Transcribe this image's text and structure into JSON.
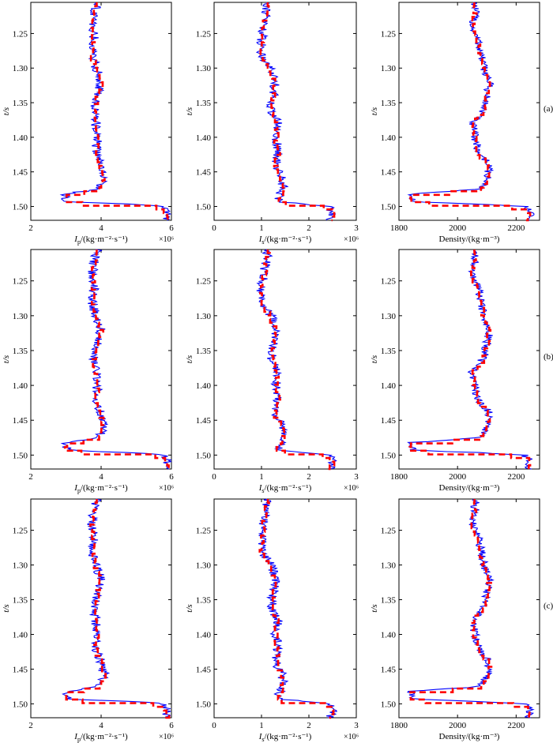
{
  "rows": [
    {
      "tag": "(a)",
      "seed": 11
    },
    {
      "tag": "(b)",
      "seed": 23
    },
    {
      "tag": "(c)",
      "seed": 37
    }
  ],
  "columns": [
    {
      "key": "ip",
      "xlim": [
        2,
        6
      ],
      "xticks": [
        "2",
        "4",
        "6"
      ],
      "xtick_values": [
        2,
        4,
        6
      ],
      "label_main": "I",
      "label_sub": "p",
      "label_rest": "/(kg·m⁻²·s⁻¹)",
      "scale": "×10⁶"
    },
    {
      "key": "is",
      "xlim": [
        0,
        3
      ],
      "xticks": [
        "0",
        "1",
        "2",
        "3"
      ],
      "xtick_values": [
        0,
        1,
        2,
        3
      ],
      "label_main": "I",
      "label_sub": "s",
      "label_rest": "/(kg·m⁻²·s⁻¹)",
      "scale": "×10⁶"
    },
    {
      "key": "rho",
      "xlim": [
        1800,
        2280
      ],
      "xticks": [
        "1800",
        "2000",
        "2200"
      ],
      "xtick_values": [
        1800,
        2000,
        2200
      ],
      "label_main": "Density/(kg·m⁻³)",
      "label_sub": "",
      "label_rest": "",
      "scale": ""
    }
  ],
  "y_axis": {
    "label": "t/s",
    "ylim": [
      1.205,
      1.52
    ],
    "ticks": [
      "1.25",
      "1.30",
      "1.35",
      "1.40",
      "1.45",
      "1.50"
    ],
    "tick_values": [
      1.25,
      1.3,
      1.35,
      1.4,
      1.45,
      1.5
    ]
  },
  "chart_data": {
    "type": "line",
    "note_series": "each panel: true log (blue solid) and inverted log (red dashed)",
    "base_profile": {
      "t": [
        1.205,
        1.22,
        1.24,
        1.26,
        1.28,
        1.3,
        1.32,
        1.34,
        1.36,
        1.38,
        1.4,
        1.42,
        1.44,
        1.46,
        1.475,
        1.482,
        1.488,
        1.493,
        1.497,
        1.5,
        1.51,
        1.52
      ],
      "ip": [
        3.9,
        3.8,
        3.75,
        3.8,
        3.75,
        3.85,
        4.0,
        3.9,
        3.8,
        3.85,
        3.9,
        3.85,
        4.0,
        4.1,
        3.9,
        3.0,
        3.0,
        3.05,
        5.0,
        5.8,
        5.9,
        5.85
      ],
      "is": [
        1.15,
        1.1,
        1.05,
        1.0,
        1.0,
        1.2,
        1.3,
        1.25,
        1.2,
        1.35,
        1.3,
        1.35,
        1.3,
        1.45,
        1.45,
        1.4,
        1.35,
        1.35,
        2.0,
        2.45,
        2.5,
        2.45
      ],
      "rho": [
        2060,
        2060,
        2050,
        2070,
        2080,
        2090,
        2110,
        2100,
        2090,
        2050,
        2060,
        2070,
        2110,
        2100,
        2080,
        1840,
        1840,
        1850,
        2100,
        2230,
        2250,
        2240
      ]
    }
  }
}
